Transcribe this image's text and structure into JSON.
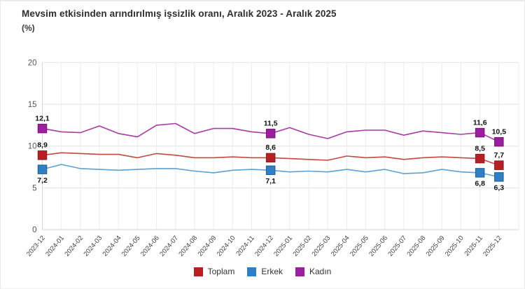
{
  "page": {
    "title": "Mevsim etkisinden arındırılmış işsizlik oranı, Aralık 2023 - Aralık 2025",
    "unit_label": "(%)"
  },
  "chart_data": {
    "type": "line",
    "title": "Mevsim etkisinden arındırılmış işsizlik oranı, Aralık 2023 - Aralık 2025",
    "ylabel": "(%)",
    "xlabel": "",
    "ylim": [
      0,
      20
    ],
    "ytick_labels": [
      "0",
      "5",
      "10",
      "15",
      "20"
    ],
    "yticks": [
      0,
      5,
      10,
      15,
      20
    ],
    "grid": true,
    "legend_position": "bottom",
    "x": [
      "2023-12",
      "2024-01",
      "2024-02",
      "2024-03",
      "2024-04",
      "2024-05",
      "2024-06",
      "2024-07",
      "2024-08",
      "2024-09",
      "2024-10",
      "2024-11",
      "2024-12",
      "2025-01",
      "2025-02",
      "2025-03",
      "2025-04",
      "2025-05",
      "2025-06",
      "2025-07",
      "2025-08",
      "2025-09",
      "2025-10",
      "2025-11",
      "2025-12"
    ],
    "labeled_indices": [
      0,
      12,
      23,
      24
    ],
    "series": [
      {
        "name": "Toplam",
        "marker_color": "#b61f24",
        "line_color": "#c24840",
        "edge_color": "#8f1a1d",
        "label_side": "above",
        "values": [
          8.9,
          9.2,
          9.1,
          9.0,
          9.0,
          8.6,
          9.1,
          8.9,
          8.6,
          8.6,
          8.7,
          8.6,
          8.6,
          8.5,
          8.4,
          8.3,
          8.8,
          8.6,
          8.7,
          8.4,
          8.6,
          8.7,
          8.6,
          8.5,
          7.7
        ],
        "point_labels": {
          "0": "8,9",
          "12": "8,6",
          "23": "8,5",
          "24": "7,7"
        }
      },
      {
        "name": "Erkek",
        "marker_color": "#2e7fc3",
        "line_color": "#5da0d3",
        "edge_color": "#1f5f96",
        "label_side": "below",
        "values": [
          7.2,
          7.8,
          7.3,
          7.2,
          7.1,
          7.2,
          7.3,
          7.3,
          7.0,
          6.8,
          7.1,
          7.2,
          7.1,
          6.9,
          7.0,
          6.9,
          7.2,
          6.9,
          7.2,
          6.7,
          6.8,
          7.2,
          6.9,
          6.8,
          6.3
        ],
        "point_labels": {
          "0": "7,2",
          "12": "7,1",
          "23": "6,8",
          "24": "6,3"
        }
      },
      {
        "name": "Kadın",
        "marker_color": "#9c1d9e",
        "line_color": "#a93aa6",
        "edge_color": "#771677",
        "label_side": "above",
        "values": [
          12.1,
          11.7,
          11.6,
          12.4,
          11.5,
          11.1,
          12.5,
          12.7,
          11.5,
          12.1,
          12.1,
          11.7,
          11.5,
          12.2,
          11.4,
          10.9,
          11.7,
          11.9,
          11.9,
          11.3,
          11.8,
          11.6,
          11.4,
          11.6,
          10.5
        ],
        "point_labels": {
          "0": "12,1",
          "12": "11,5",
          "23": "11,6",
          "24": "10,5"
        }
      }
    ]
  },
  "legend": {
    "items": [
      {
        "label": "Toplam",
        "color": "#b61f24"
      },
      {
        "label": "Erkek",
        "color": "#2e7fc3"
      },
      {
        "label": "Kadın",
        "color": "#9c1d9e"
      }
    ]
  }
}
